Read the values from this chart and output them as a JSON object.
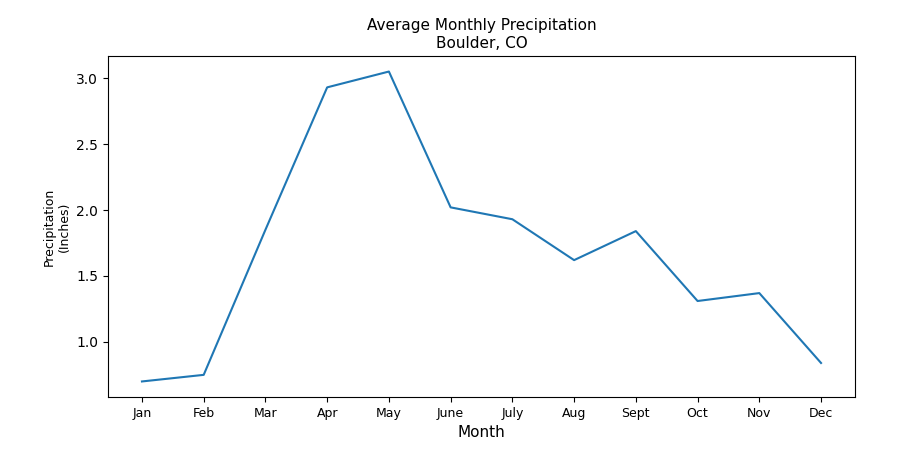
{
  "months": [
    "Jan",
    "Feb",
    "Mar",
    "Apr",
    "May",
    "June",
    "July",
    "Aug",
    "Sept",
    "Oct",
    "Nov",
    "Dec"
  ],
  "precipitation": [
    0.7,
    0.75,
    1.85,
    2.93,
    3.05,
    2.02,
    1.93,
    1.62,
    1.84,
    1.31,
    1.37,
    0.84
  ],
  "title_line1": "Average Monthly Precipitation",
  "title_line2": "Boulder, CO",
  "xlabel": "Month",
  "ylabel": "Precipitation\n(Inches)",
  "line_color": "#1f77b4",
  "line_width": 1.5,
  "yticks": [
    1.0,
    1.5,
    2.0,
    2.5,
    3.0
  ],
  "figsize": [
    9.0,
    4.67
  ],
  "dpi": 100
}
